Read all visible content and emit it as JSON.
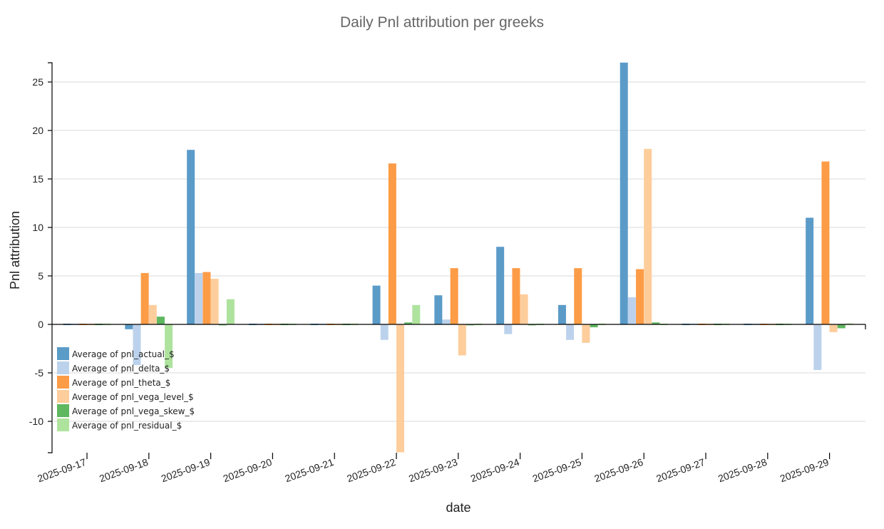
{
  "chart_data": {
    "type": "bar",
    "title": "Daily Pnl attribution per greeks",
    "xlabel": "date",
    "ylabel": "Pnl attribution",
    "ylim": [
      -13.2,
      27
    ],
    "yticks": [
      -10,
      -5,
      0,
      5,
      10,
      15,
      20,
      25
    ],
    "grid": true,
    "legend_position": "bottom-left",
    "categories": [
      "2025-09-17",
      "2025-09-18",
      "2025-09-19",
      "2025-09-20",
      "2025-09-21",
      "2025-09-22",
      "2025-09-23",
      "2025-09-24",
      "2025-09-25",
      "2025-09-26",
      "2025-09-27",
      "2025-09-28",
      "2025-09-29"
    ],
    "series": [
      {
        "name": "Average of pnl_actual_$",
        "color": "#5b9bc8",
        "values": [
          0,
          -0.5,
          18,
          0,
          0,
          4,
          3,
          8,
          2,
          27,
          0,
          0,
          11
        ]
      },
      {
        "name": "Average of pnl_delta_$",
        "color": "#bcd2ec",
        "values": [
          0,
          -4.2,
          5.3,
          0,
          0,
          -1.6,
          0.5,
          -1.0,
          -1.6,
          2.8,
          0,
          0,
          -4.7
        ]
      },
      {
        "name": "Average of pnl_theta_$",
        "color": "#fd9c47",
        "values": [
          0,
          5.3,
          5.4,
          0,
          0,
          16.6,
          5.8,
          5.8,
          5.8,
          5.7,
          0,
          0,
          16.8
        ]
      },
      {
        "name": "Average of pnl_vega_level_$",
        "color": "#fdcd9c",
        "values": [
          0,
          2.0,
          4.7,
          0,
          0,
          -13.2,
          -3.2,
          3.1,
          -1.9,
          18.1,
          0,
          0,
          -0.8
        ]
      },
      {
        "name": "Average of pnl_vega_skew_$",
        "color": "#5fb760",
        "values": [
          0,
          0.8,
          -0.1,
          0,
          0,
          0.2,
          -0.1,
          -0.1,
          -0.3,
          0.2,
          0,
          0,
          -0.4
        ]
      },
      {
        "name": "Average of pnl_residual_$",
        "color": "#aee39e",
        "values": [
          0,
          -4.5,
          2.6,
          0,
          0,
          2.0,
          0,
          0,
          0,
          0,
          0,
          0,
          0.1
        ]
      }
    ]
  }
}
